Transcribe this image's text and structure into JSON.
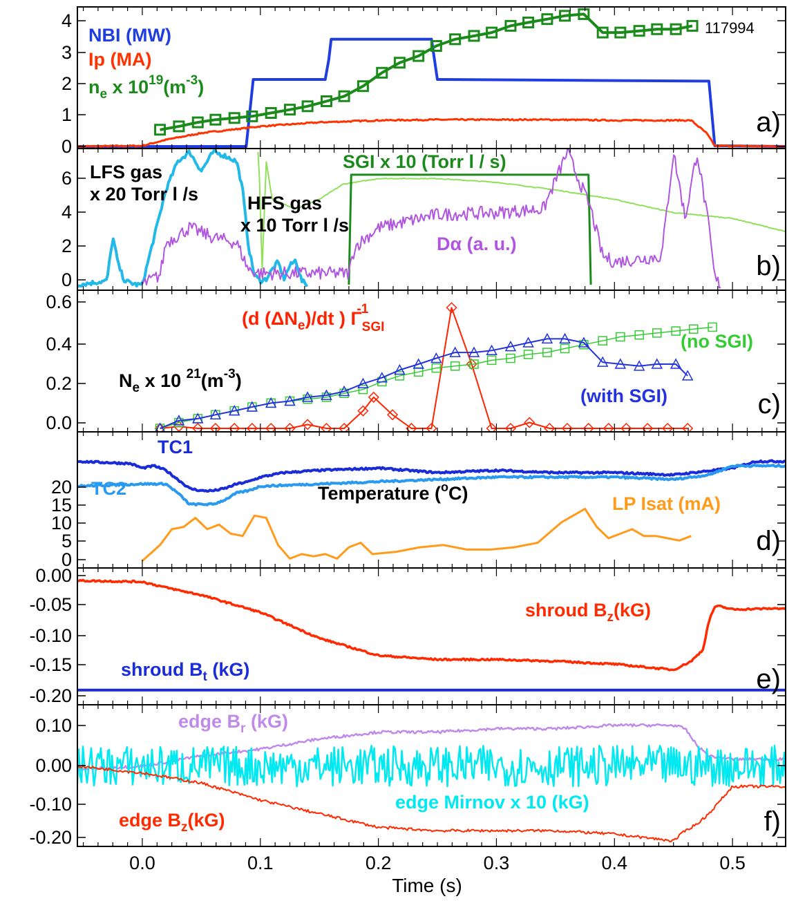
{
  "shot_number": "117994",
  "xaxis": {
    "label": "Time (s)",
    "ticks": [
      0.0,
      0.1,
      0.2,
      0.3,
      0.4,
      0.5
    ],
    "tick_labels": [
      "0.0",
      "0.1",
      "0.2",
      "0.3",
      "0.4",
      "0.5"
    ],
    "range": [
      -0.055,
      0.545
    ]
  },
  "colors": {
    "nbi": "#1f3de0",
    "ip": "#ff3300",
    "ne": "#1a8a1a",
    "lfs": "#22b8e8",
    "dalpha": "#b055e0",
    "hfs": "#8fe05a",
    "sgi": "#1a8a1a",
    "rate": "#ff2200",
    "nosgi": "#33cc33",
    "withsgi": "#2233dd",
    "tc1": "#1a2bd8",
    "tc2": "#2a9af0",
    "lp": "#ff9a1a",
    "bz": "#ff2a00",
    "bt": "#1a2bd8",
    "br": "#c08ae8",
    "mirnov": "#00e8f0",
    "black": "#000000"
  },
  "chart_data": [
    {
      "panel": "a)",
      "type": "line",
      "ylim": [
        0,
        4
      ],
      "yticks": [
        "0",
        "1",
        "2",
        "3",
        "4"
      ],
      "annotations": {
        "nbi": "NBI (MW)",
        "ip": "Ip (MA)",
        "ne_main": "n",
        "ne_sub": "e",
        "ne_mid": " x 10",
        "ne_sup": "19",
        "ne_unit": "(m",
        "ne_unit_sup": "-3",
        "ne_close": ")"
      },
      "series": [
        {
          "name": "NBI (MW)",
          "x": [
            -0.055,
            0.088,
            0.094,
            0.155,
            0.158,
            0.16,
            0.245,
            0.25,
            0.48,
            0.485,
            0.545
          ],
          "y": [
            0,
            0,
            2.0,
            2.0,
            2.6,
            3.2,
            3.2,
            2.0,
            1.95,
            0.02,
            0
          ]
        },
        {
          "name": "Ip (MA)",
          "x": [
            -0.055,
            0.0,
            0.02,
            0.05,
            0.1,
            0.15,
            0.2,
            0.25,
            0.3,
            0.35,
            0.4,
            0.45,
            0.465,
            0.478,
            0.485,
            0.545
          ],
          "y": [
            0,
            0.02,
            0.2,
            0.4,
            0.6,
            0.72,
            0.78,
            0.8,
            0.8,
            0.8,
            0.78,
            0.78,
            0.78,
            0.4,
            0.02,
            0
          ]
        },
        {
          "name": "n_e x 10^19 (m^-3)",
          "x": [
            0.015,
            0.031,
            0.047,
            0.062,
            0.078,
            0.093,
            0.109,
            0.125,
            0.14,
            0.156,
            0.171,
            0.187,
            0.203,
            0.218,
            0.234,
            0.249,
            0.265,
            0.281,
            0.296,
            0.312,
            0.327,
            0.343,
            0.358,
            0.374,
            0.39,
            0.405,
            0.421,
            0.436,
            0.452,
            0.466
          ],
          "y": [
            0.5,
            0.6,
            0.72,
            0.8,
            0.85,
            0.9,
            1.0,
            1.1,
            1.2,
            1.35,
            1.5,
            1.8,
            2.2,
            2.5,
            2.7,
            3.0,
            3.2,
            3.3,
            3.4,
            3.6,
            3.7,
            3.8,
            3.9,
            3.95,
            3.4,
            3.4,
            3.45,
            3.5,
            3.5,
            3.6
          ]
        }
      ]
    },
    {
      "panel": "b)",
      "type": "line",
      "ylim": [
        0,
        7
      ],
      "yticks": [
        "0",
        "2",
        "4",
        "6"
      ],
      "annotations": {
        "lfs_1": "LFS gas",
        "lfs_2": "x 20 Torr l /s",
        "hfs_1": "HFS gas",
        "hfs_2": "x 10 Torr l /s",
        "sgi": "SGI x 10 (Torr l / s)",
        "da": "Dα (a. u.)"
      },
      "series": [
        {
          "name": "LFS gas x 20 Torr l/s",
          "x": [
            -0.055,
            -0.03,
            -0.025,
            -0.02,
            -0.015,
            -0.005,
            0.0,
            0.02,
            0.03,
            0.04,
            0.05,
            0.06,
            0.07,
            0.08,
            0.085,
            0.09,
            0.095,
            0.1,
            0.105,
            0.11,
            0.115,
            0.12,
            0.125,
            0.13,
            0.135,
            0.14
          ],
          "y": [
            0,
            0.2,
            2.5,
            1.0,
            0.2,
            0,
            0,
            5.0,
            6.5,
            7.0,
            6.0,
            7.0,
            6.8,
            6.5,
            5.0,
            2.0,
            0.5,
            0.2,
            0.3,
            0.8,
            1.2,
            0.3,
            1.0,
            1.3,
            0.2,
            0
          ]
        },
        {
          "name": "HFS gas x 10 Torr l/s",
          "x": [
            0.098,
            0.1,
            0.101,
            0.105,
            0.11,
            0.13,
            0.15,
            0.17,
            0.2,
            0.25,
            0.3,
            0.35,
            0.4,
            0.45,
            0.5,
            0.545
          ],
          "y": [
            7,
            4.8,
            0,
            6.5,
            4.5,
            4.0,
            4.5,
            5.3,
            5.6,
            5.6,
            5.4,
            5.0,
            4.5,
            3.8,
            3.5,
            2.8
          ]
        },
        {
          "name": "SGI x 10 (Torr l / s)",
          "x": [
            0.175,
            0.177,
            0.378,
            0.38
          ],
          "y": [
            0,
            5.8,
            5.8,
            0
          ]
        },
        {
          "name": "Dα (a. u.)",
          "x": [
            0.0,
            0.015,
            0.02,
            0.04,
            0.06,
            0.08,
            0.09,
            0.1,
            0.15,
            0.175,
            0.18,
            0.2,
            0.25,
            0.3,
            0.34,
            0.36,
            0.37,
            0.38,
            0.39,
            0.4,
            0.44,
            0.45,
            0.46,
            0.47,
            0.48,
            0.485,
            0.49
          ],
          "y": [
            0,
            0.5,
            2.2,
            3.0,
            2.5,
            2.2,
            0.8,
            0.6,
            0.6,
            0.6,
            2.0,
            3.0,
            3.7,
            3.8,
            4.0,
            7.0,
            5.5,
            4.0,
            1.5,
            1.2,
            1.5,
            7.0,
            3.5,
            7.0,
            3.0,
            0.3,
            0
          ]
        }
      ]
    },
    {
      "panel": "c)",
      "type": "line",
      "ylim": [
        0,
        0.66
      ],
      "yticks": [
        "0.0",
        "0.2",
        "0.4",
        "0.6"
      ],
      "annotations": {
        "rate_1": "(d (ΔN",
        "rate_2": "e",
        "rate_3": ")/dt ) Γ",
        "rate_sub": "SGI",
        "rate_sup": "-1",
        "ne_1": "N",
        "ne_2": "e",
        "ne_3": " x 10 ",
        "ne_sup": "21",
        "ne_4": "(m",
        "ne_sup2": "-3",
        "ne_5": ")",
        "nosgi": "(no SGI)",
        "withsgi": "(with SGI)"
      },
      "series": [
        {
          "name": "(d(ΔNe)/dt) Γ_SGI^-1",
          "x": [
            0.015,
            0.031,
            0.047,
            0.062,
            0.078,
            0.093,
            0.109,
            0.125,
            0.14,
            0.156,
            0.171,
            0.187,
            0.196,
            0.212,
            0.228,
            0.245,
            0.262,
            0.279,
            0.296,
            0.312,
            0.328,
            0.345,
            0.36,
            0.378,
            0.395,
            0.41,
            0.428,
            0.445,
            0.462
          ],
          "y": [
            0.0,
            0.01,
            0.0,
            0.0,
            0.0,
            0.0,
            0.0,
            0.0,
            0.02,
            0.0,
            0.0,
            0.09,
            0.16,
            0.07,
            0.0,
            0.0,
            0.62,
            0.33,
            0.0,
            0.0,
            0.03,
            0.0,
            0.0,
            0.0,
            0.0,
            0.0,
            0.0,
            0.0,
            0.0
          ]
        },
        {
          "name": "(no SGI)",
          "x": [
            0.015,
            0.031,
            0.047,
            0.062,
            0.078,
            0.093,
            0.109,
            0.125,
            0.14,
            0.156,
            0.171,
            0.187,
            0.203,
            0.218,
            0.234,
            0.249,
            0.265,
            0.281,
            0.296,
            0.312,
            0.327,
            0.343,
            0.358,
            0.374,
            0.39,
            0.405,
            0.421,
            0.436,
            0.452,
            0.467,
            0.483
          ],
          "y": [
            0.0,
            0.03,
            0.05,
            0.07,
            0.09,
            0.11,
            0.13,
            0.14,
            0.15,
            0.16,
            0.18,
            0.2,
            0.24,
            0.27,
            0.29,
            0.31,
            0.32,
            0.33,
            0.35,
            0.36,
            0.38,
            0.39,
            0.41,
            0.43,
            0.45,
            0.47,
            0.48,
            0.49,
            0.5,
            0.51,
            0.52
          ]
        },
        {
          "name": "(with SGI)",
          "x": [
            0.015,
            0.031,
            0.047,
            0.062,
            0.078,
            0.093,
            0.109,
            0.125,
            0.14,
            0.156,
            0.171,
            0.187,
            0.203,
            0.218,
            0.234,
            0.249,
            0.265,
            0.281,
            0.296,
            0.312,
            0.327,
            0.343,
            0.358,
            0.374,
            0.39,
            0.405,
            0.421,
            0.436,
            0.452,
            0.462
          ],
          "y": [
            0.0,
            0.04,
            0.05,
            0.07,
            0.09,
            0.11,
            0.13,
            0.14,
            0.16,
            0.17,
            0.19,
            0.23,
            0.26,
            0.3,
            0.33,
            0.36,
            0.39,
            0.39,
            0.4,
            0.42,
            0.44,
            0.46,
            0.46,
            0.44,
            0.34,
            0.33,
            0.32,
            0.33,
            0.33,
            0.27
          ]
        }
      ]
    },
    {
      "panel": "d)",
      "type": "line",
      "ylim": [
        -0.5,
        25
      ],
      "yticks": [
        "0",
        "5",
        "10",
        "15",
        "20"
      ],
      "annotations": {
        "tc1": "TC1",
        "tc2": "TC2",
        "temp_1": "Temperature (",
        "temp_sup": "o",
        "temp_2": "C)",
        "lp": "LP Isat (mA)"
      },
      "series": [
        {
          "name": "TC1",
          "x": [
            -0.055,
            -0.01,
            0.0,
            0.01,
            0.02,
            0.03,
            0.04,
            0.05,
            0.06,
            0.07,
            0.08,
            0.09,
            0.1,
            0.12,
            0.15,
            0.2,
            0.25,
            0.3,
            0.35,
            0.4,
            0.45,
            0.5,
            0.52,
            0.545
          ],
          "y": [
            22,
            21.5,
            20.5,
            21,
            20,
            18,
            16,
            15.5,
            15.5,
            16,
            17,
            17.5,
            18.5,
            19.5,
            20,
            20.5,
            19.5,
            20,
            19.5,
            19.5,
            19,
            20.5,
            22,
            22
          ]
        },
        {
          "name": "TC2",
          "x": [
            -0.055,
            0.0,
            0.02,
            0.03,
            0.04,
            0.05,
            0.06,
            0.07,
            0.08,
            0.09,
            0.1,
            0.15,
            0.2,
            0.25,
            0.3,
            0.4,
            0.45,
            0.48,
            0.5,
            0.545
          ],
          "y": [
            16.5,
            17,
            17,
            15,
            12.5,
            12.5,
            12.5,
            13.5,
            15,
            15.5,
            16.5,
            17,
            17.5,
            18,
            18.5,
            18.5,
            18,
            19,
            21,
            21
          ]
        },
        {
          "name": "LP Isat (mA)",
          "x": [
            0.0,
            0.015,
            0.025,
            0.035,
            0.045,
            0.055,
            0.065,
            0.075,
            0.085,
            0.095,
            0.105,
            0.115,
            0.125,
            0.135,
            0.145,
            0.155,
            0.165,
            0.175,
            0.185,
            0.195,
            0.215,
            0.235,
            0.255,
            0.275,
            0.295,
            0.315,
            0.335,
            0.355,
            0.375,
            0.385,
            0.395,
            0.405,
            0.415,
            0.425,
            0.435,
            0.445,
            0.455,
            0.465
          ],
          "y": [
            0,
            3.5,
            7,
            7.5,
            9.5,
            7,
            8,
            6,
            5.5,
            10,
            9.5,
            3.5,
            0.5,
            1.5,
            1,
            1.5,
            0.5,
            3,
            4,
            1.5,
            2,
            3,
            3.5,
            2.5,
            2.5,
            3,
            4,
            8.5,
            11.5,
            7.5,
            5,
            6,
            7,
            5.5,
            5.5,
            5,
            4.5,
            5.5
          ]
        }
      ]
    },
    {
      "panel": "e)",
      "type": "line",
      "ylim": [
        -0.2,
        0.01
      ],
      "yticks": [
        "0.00",
        "-0.05",
        "-0.10",
        "-0.15",
        "-0.20"
      ],
      "annotations": {
        "bz_1": "shroud B",
        "bz_sub": "z",
        "bz_2": "(kG)",
        "bt_1": "shroud B",
        "bt_sub": "t",
        "bt_2": " (kG)"
      },
      "series": [
        {
          "name": "shroud Bz (kG)",
          "x": [
            -0.055,
            0.0,
            0.02,
            0.05,
            0.1,
            0.15,
            0.2,
            0.25,
            0.3,
            0.35,
            0.4,
            0.45,
            0.455,
            0.465,
            0.475,
            0.48,
            0.485,
            0.49,
            0.5,
            0.545
          ],
          "y": [
            0.0,
            -0.002,
            -0.012,
            -0.025,
            -0.055,
            -0.1,
            -0.13,
            -0.137,
            -0.137,
            -0.14,
            -0.145,
            -0.155,
            -0.15,
            -0.14,
            -0.12,
            -0.07,
            -0.045,
            -0.045,
            -0.05,
            -0.048
          ]
        },
        {
          "name": "shroud Bt (kG)",
          "x": [
            -0.055,
            0.545
          ],
          "y": [
            -0.19,
            -0.19
          ]
        }
      ]
    },
    {
      "panel": "f)",
      "type": "line",
      "ylim": [
        -0.22,
        0.16
      ],
      "yticks": [
        "0.10",
        "0.00",
        "-0.10",
        "-0.20"
      ],
      "annotations": {
        "br_1": "edge B",
        "br_sub": "r",
        "br_2": " (kG)",
        "mir": "edge Mirnov x 10 (kG)",
        "bz_1": "edge B",
        "bz_sub": "z",
        "bz_2": "(kG)"
      },
      "series": [
        {
          "name": "edge Br (kG)",
          "x": [
            -0.055,
            0.0,
            0.05,
            0.1,
            0.15,
            0.2,
            0.25,
            0.3,
            0.35,
            0.4,
            0.45,
            0.46,
            0.47,
            0.48,
            0.5,
            0.545
          ],
          "y": [
            -0.01,
            0.0,
            0.03,
            0.05,
            0.08,
            0.1,
            0.1,
            0.11,
            0.11,
            0.12,
            0.12,
            0.11,
            0.06,
            0.03,
            0.02,
            0.02
          ]
        },
        {
          "name": "edge Mirnov x 10 (kG)",
          "x": [
            -0.055,
            0.545
          ],
          "y": [
            0.0,
            0.0
          ],
          "noise": 0.06
        },
        {
          "name": "edge Bz (kG)",
          "x": [
            -0.055,
            0.0,
            0.05,
            0.1,
            0.15,
            0.2,
            0.25,
            0.3,
            0.35,
            0.4,
            0.45,
            0.46,
            0.47,
            0.48,
            0.49,
            0.5,
            0.545
          ],
          "y": [
            0.0,
            -0.02,
            -0.05,
            -0.1,
            -0.14,
            -0.18,
            -0.19,
            -0.19,
            -0.19,
            -0.2,
            -0.22,
            -0.19,
            -0.17,
            -0.14,
            -0.1,
            -0.06,
            -0.06
          ]
        }
      ]
    }
  ]
}
